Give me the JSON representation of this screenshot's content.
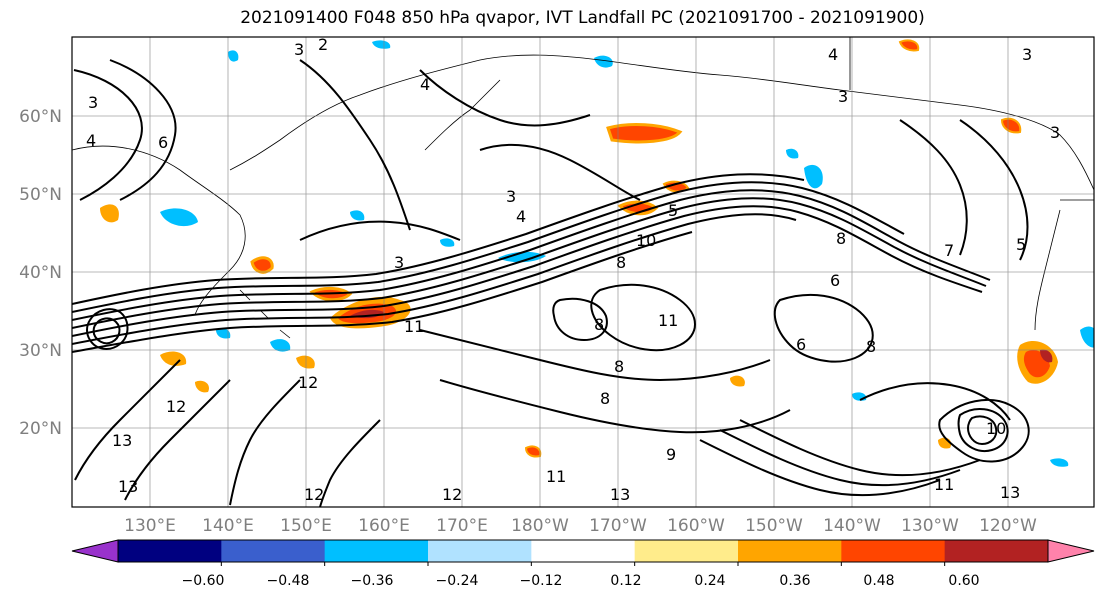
{
  "title": "2021091400 F048 850 hPa qvapor, IVT Landfall PC (2021091700 - 2021091900)",
  "map": {
    "lon_labels": [
      "130°E",
      "140°E",
      "150°E",
      "160°E",
      "170°E",
      "180°W",
      "170°W",
      "160°W",
      "150°W",
      "140°W",
      "130°W",
      "120°W"
    ],
    "lat_labels": [
      "20°N",
      "30°N",
      "40°N",
      "50°N",
      "60°N"
    ],
    "contour_labels": [
      "3",
      "2",
      "4",
      "3",
      "6",
      "4",
      "3",
      "3",
      "4",
      "3",
      "4",
      "3",
      "5",
      "3",
      "6",
      "8",
      "10",
      "11",
      "8",
      "11",
      "8",
      "6",
      "8",
      "8",
      "12",
      "12",
      "13",
      "12",
      "13",
      "12",
      "11",
      "9",
      "13",
      "11",
      "13",
      "10",
      "7",
      "5",
      "8"
    ]
  },
  "colorbar": {
    "ticks": [
      "−0.60",
      "−0.48",
      "−0.36",
      "−0.24",
      "−0.12",
      "0.12",
      "0.24",
      "0.36",
      "0.48",
      "0.60"
    ],
    "colors": [
      "#9932cc",
      "#000080",
      "#3a5fcd",
      "#00bfff",
      "#b0e2ff",
      "#ffffff",
      "#ffec8b",
      "#ffa500",
      "#ff4500",
      "#b22222",
      "#ff82ab"
    ]
  }
}
